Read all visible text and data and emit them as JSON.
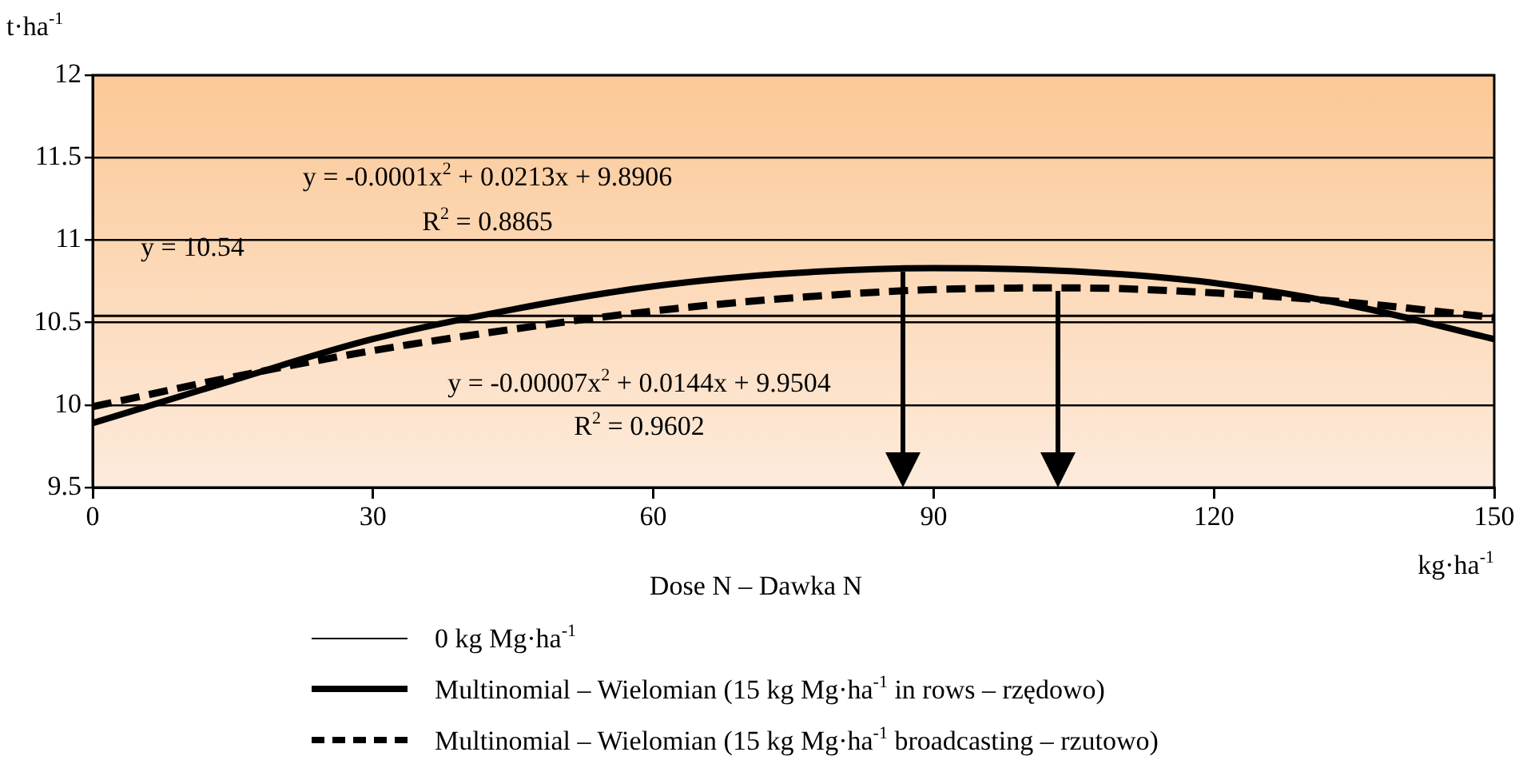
{
  "chart_data": {
    "type": "line",
    "xlabel": "Dose N – Dawka N",
    "ylabel": "t·ha$^{-1}$",
    "series": [
      {
        "name": "0 kg Mg·ha$^{-1}$",
        "color": "#000000",
        "line_style": "solid",
        "x": [
          0,
          150
        ],
        "values": [
          10.54,
          10.54
        ]
      },
      {
        "name": "Multinomial – Wielomian (15 kg Mg·ha$^{-1}$ in rows – rzędowo)",
        "color": "#000000",
        "line_style": "solid",
        "x": [
          0,
          15,
          30,
          45,
          60,
          75,
          90,
          105,
          120,
          135,
          150
        ],
        "values": [
          9.89,
          10.15,
          10.4,
          10.58,
          10.72,
          10.8,
          10.83,
          10.81,
          10.74,
          10.6,
          10.4
        ]
      },
      {
        "name": "Multinomial – Wielomian (15 kg Mg·ha$^{-1}$ broadcasting – rzutowo)",
        "color": "#000000",
        "line_style": "dashed",
        "x": [
          0,
          15,
          30,
          45,
          60,
          75,
          90,
          105,
          120,
          135,
          150
        ],
        "values": [
          9.99,
          10.17,
          10.33,
          10.46,
          10.57,
          10.65,
          10.7,
          10.71,
          10.68,
          10.62,
          10.53
        ]
      }
    ],
    "xlim": [
      0,
      150
    ],
    "xticks": [
      0,
      30,
      60,
      90,
      120,
      150
    ],
    "ylim": [
      9.5,
      12
    ],
    "yticks": [
      9.5,
      10,
      10.5,
      11,
      11.5,
      12
    ],
    "grid": "y",
    "legend": "bottom",
    "marker": "none",
    "annotations": [
      "y = -0.0001x$^{2}$ + 0.0213x + 9.8906",
      "R$^{2}$  = 0.8865",
      "y =  10.54",
      "y = -0.00007x$^{2}$ + 0.0144x + 9.9504",
      "R$^{2}$ = 0.9602",
      "kg·ha$^{-1}$"
    ]
  }
}
